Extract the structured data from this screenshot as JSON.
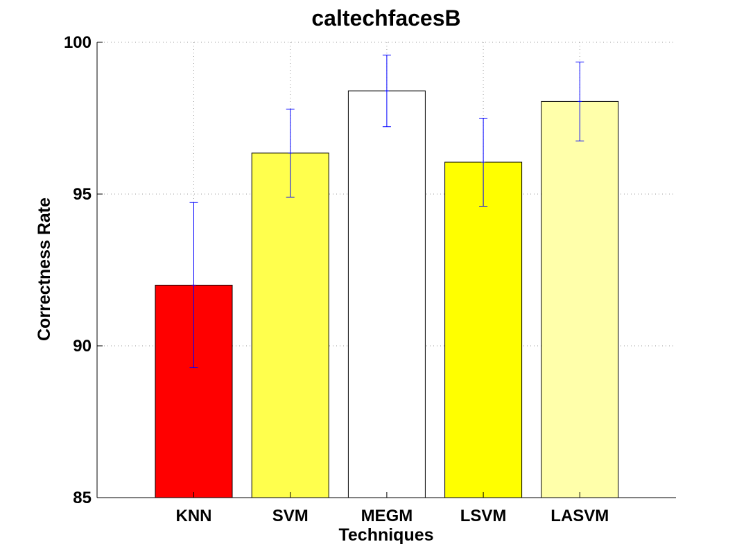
{
  "chart_data": {
    "type": "bar",
    "title": "caltechfacesB",
    "xlabel": "Techniques",
    "ylabel": "Correctness Rate",
    "ylim": [
      85,
      100
    ],
    "yticks": [
      85,
      90,
      95,
      100
    ],
    "grid": true,
    "categories": [
      "KNN",
      "SVM",
      "MEGM",
      "LSVM",
      "LASVM"
    ],
    "values": [
      92.0,
      96.35,
      98.4,
      96.05,
      98.05
    ],
    "error_low": [
      89.28,
      94.9,
      97.22,
      94.6,
      96.75
    ],
    "error_high": [
      94.72,
      97.8,
      99.58,
      97.5,
      99.35
    ],
    "bar_colors": [
      "#ff0000",
      "#ffff4d",
      "#ffffff",
      "#ffff00",
      "#ffffaa"
    ],
    "error_color": "#0000ff"
  }
}
